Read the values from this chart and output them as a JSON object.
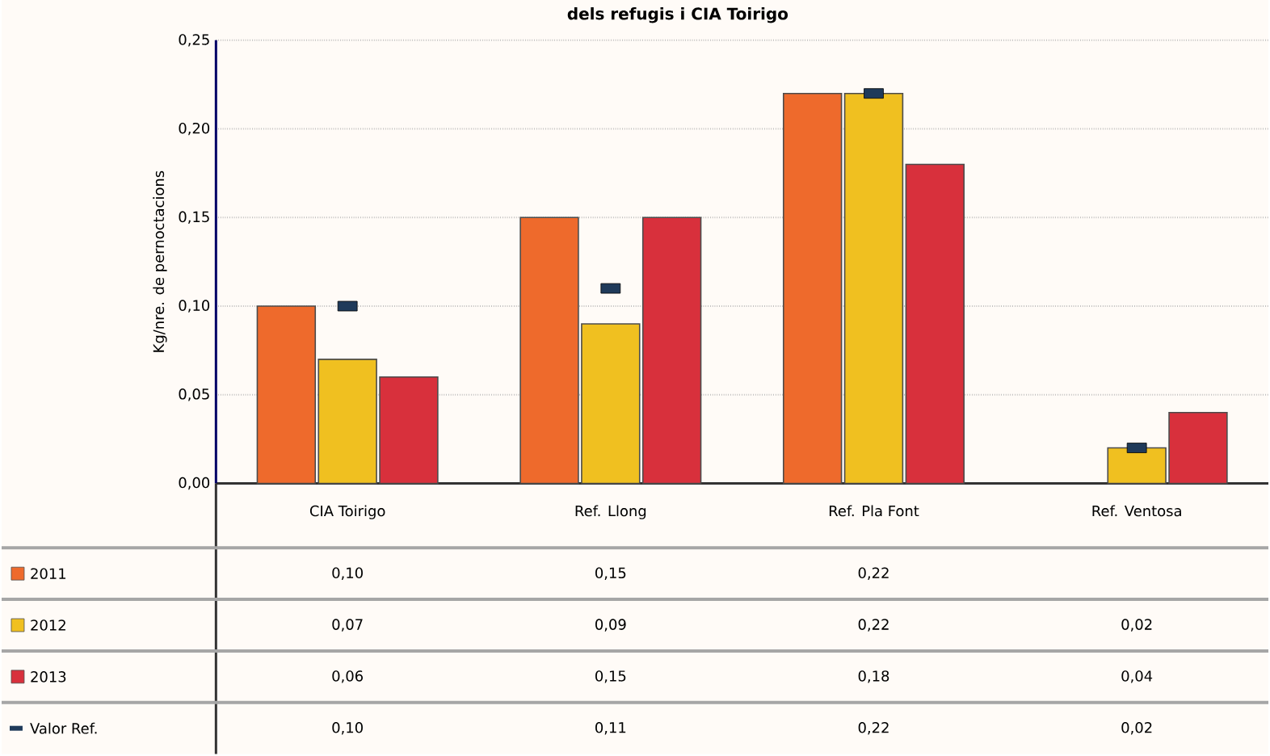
{
  "chart_data": {
    "type": "bar",
    "title": "dels refugis i CIA Toirigo",
    "ylabel": "Kg/nre. de pernoctacions",
    "categories": [
      "CIA Toirigo",
      "Ref. Llong",
      "Ref. Pla Font",
      "Ref. Ventosa"
    ],
    "series": [
      {
        "name": "2011",
        "color": "#ee6a2c",
        "values": [
          0.1,
          0.15,
          0.22,
          null
        ],
        "value_labels": [
          "0,10",
          "0,15",
          "0,22",
          null
        ]
      },
      {
        "name": "2012",
        "color": "#f0c020",
        "values": [
          0.07,
          0.09,
          0.22,
          0.02
        ],
        "value_labels": [
          "0,07",
          "0,09",
          "0,22",
          "0,02"
        ]
      },
      {
        "name": "2013",
        "color": "#d8303c",
        "values": [
          0.06,
          0.15,
          0.18,
          0.04
        ],
        "value_labels": [
          "0,06",
          "0,15",
          "0,18",
          "0,04"
        ]
      },
      {
        "name": "Valor Ref.",
        "type": "scatter",
        "color": "#1f3a5a",
        "values": [
          0.1,
          0.11,
          0.22,
          0.02
        ],
        "value_labels": [
          "0,10",
          "0,11",
          "0,22",
          "0,02"
        ]
      }
    ],
    "ylim": [
      0,
      0.25
    ],
    "yticks": [
      {
        "value": 0,
        "label": "0,00"
      },
      {
        "value": 0.05,
        "label": "0,05"
      },
      {
        "value": 0.1,
        "label": "0,10"
      },
      {
        "value": 0.15,
        "label": "0,15"
      },
      {
        "value": 0.2,
        "label": "0,20"
      },
      {
        "value": 0.25,
        "label": "0,25"
      }
    ],
    "grid": "y",
    "legend": "bottom",
    "marker": "square"
  }
}
